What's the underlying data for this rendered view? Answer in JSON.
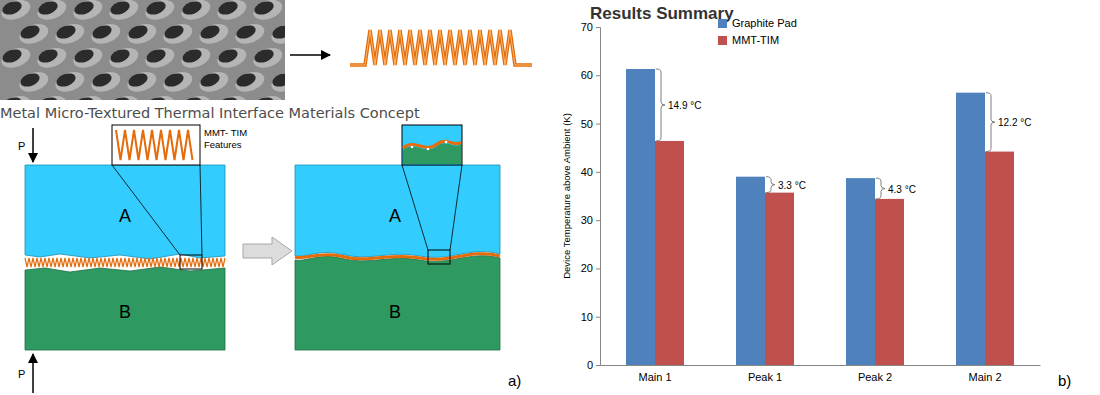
{
  "chart_data": {
    "type": "bar",
    "title": "Results Summary",
    "y_label": "Device Temperature above Ambient (K)",
    "categories": [
      "Main 1",
      "Peak 1",
      "Peak 2",
      "Main 2"
    ],
    "series": [
      {
        "name": "Graphite Pad",
        "color": "#4f81bd",
        "values": [
          61.3,
          39.0,
          38.7,
          56.4
        ]
      },
      {
        "name": "MMT-TIM",
        "color": "#c0504d",
        "values": [
          46.4,
          35.7,
          34.4,
          44.2
        ]
      }
    ],
    "annotations": [
      "14.9 °C",
      "3.3 °C",
      "4.3 °C",
      "12.2 °C"
    ],
    "ylim": [
      0,
      70
    ],
    "yticks": [
      0,
      10,
      20,
      30,
      40,
      50,
      60,
      70
    ],
    "grid": false,
    "legend": "top"
  },
  "diagram": {
    "caption": "Metal Micro-Textured Thermal Interface Materials Concept",
    "inset_label": [
      "MMT- TIM",
      "Features"
    ],
    "blocks": [
      "A",
      "B"
    ],
    "pressure": "P",
    "panel_labels": [
      "a)",
      "b)"
    ]
  }
}
